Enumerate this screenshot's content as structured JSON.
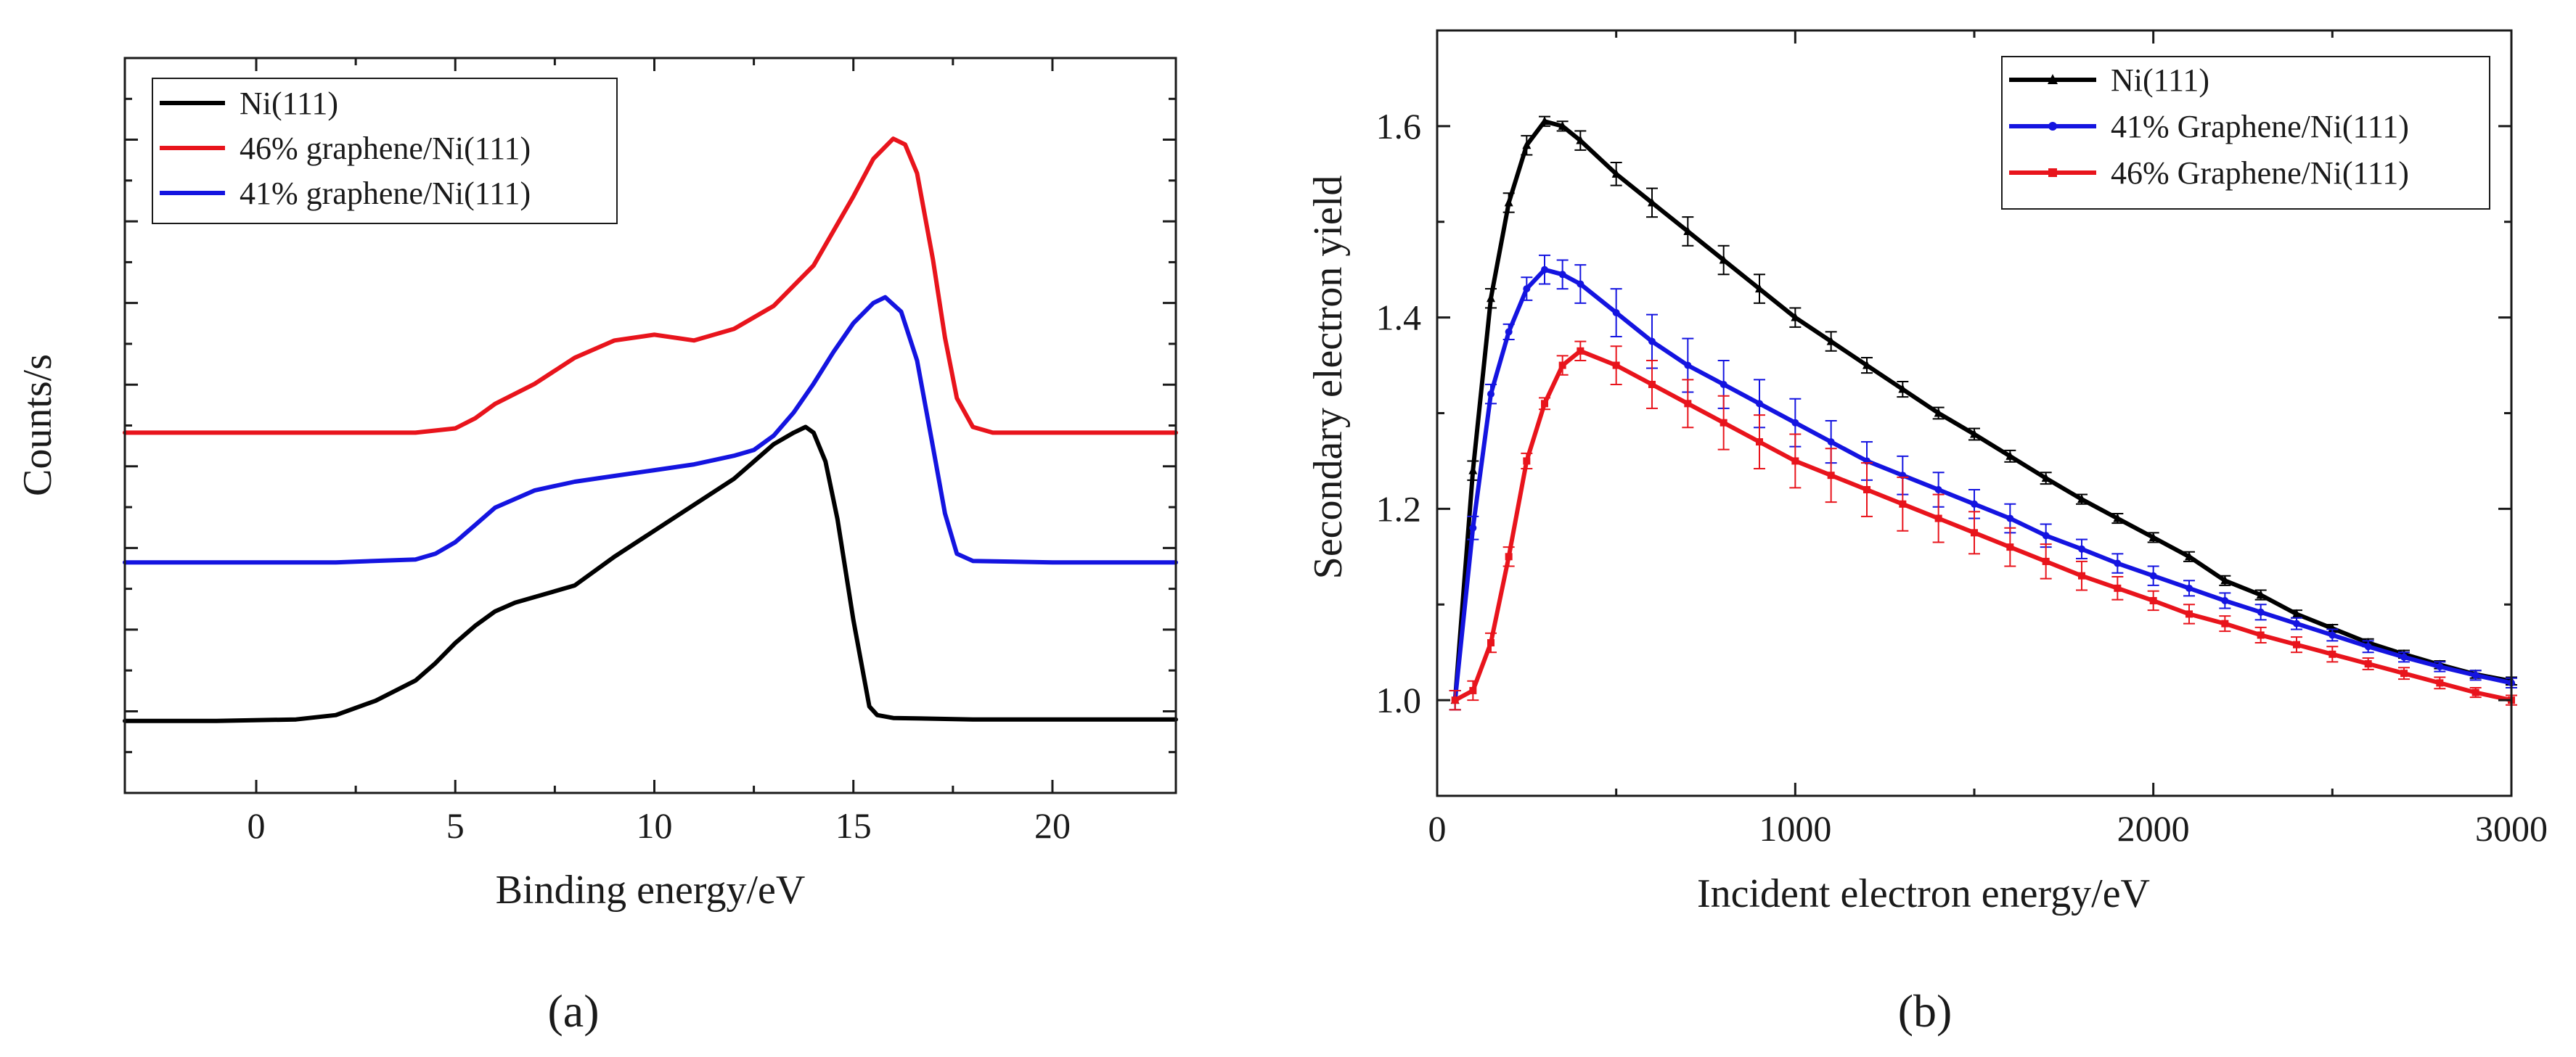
{
  "chart_data": [
    {
      "type": "line",
      "panel_label": "(a)",
      "title": "",
      "xlabel": "Binding energy/eV",
      "ylabel": "Counts/s",
      "xlim": [
        -3.3,
        23.1
      ],
      "ylim": [
        -0.25,
        2.3
      ],
      "xticks": [
        0,
        5,
        10,
        15,
        20
      ],
      "xtick_labels": [
        "0",
        "5",
        "10",
        "15",
        "20"
      ],
      "yticks_labeled": false,
      "legend_position": "top-left",
      "series": [
        {
          "name": "Ni(111)",
          "color": "#000000",
          "x": [
            -3.3,
            -1,
            1,
            2,
            3,
            4,
            4.5,
            5,
            5.5,
            6,
            6.5,
            7,
            8,
            9,
            10,
            11,
            12,
            12.5,
            13,
            13.5,
            13.8,
            14,
            14.3,
            14.6,
            15,
            15.4,
            15.6,
            16,
            18,
            20,
            23.1
          ],
          "y": [
            0,
            0,
            0.005,
            0.02,
            0.07,
            0.14,
            0.2,
            0.27,
            0.33,
            0.38,
            0.41,
            0.43,
            0.47,
            0.57,
            0.66,
            0.75,
            0.84,
            0.9,
            0.96,
            1.0,
            1.02,
            1.0,
            0.9,
            0.7,
            0.35,
            0.05,
            0.02,
            0.01,
            0.005,
            0.005,
            0.005
          ]
        },
        {
          "name": "46% graphene/Ni(111)",
          "color": "#e8141c",
          "x": [
            -3.3,
            2,
            4,
            5,
            5.5,
            6,
            7,
            8,
            9,
            10,
            11,
            12,
            13,
            14,
            15,
            15.5,
            16,
            16.3,
            16.6,
            17,
            17.3,
            17.6,
            18,
            18.5,
            20,
            23.1
          ],
          "y": [
            1.0,
            1.0,
            1.0,
            1.015,
            1.05,
            1.1,
            1.17,
            1.26,
            1.32,
            1.34,
            1.32,
            1.36,
            1.44,
            1.58,
            1.82,
            1.95,
            2.02,
            2.0,
            1.9,
            1.6,
            1.33,
            1.12,
            1.02,
            1.0,
            1.0,
            1.0
          ]
        },
        {
          "name": "41% graphene/Ni(111)",
          "color": "#1414e0",
          "x": [
            -3.3,
            2,
            4,
            4.5,
            5,
            5.5,
            6,
            7,
            8,
            9,
            10,
            11,
            12,
            12.5,
            13,
            13.5,
            14,
            14.5,
            15,
            15.5,
            15.8,
            16.2,
            16.6,
            17,
            17.3,
            17.6,
            18,
            20,
            23.1
          ],
          "y": [
            0.55,
            0.55,
            0.56,
            0.58,
            0.62,
            0.68,
            0.74,
            0.8,
            0.83,
            0.85,
            0.87,
            0.89,
            0.92,
            0.94,
            0.99,
            1.07,
            1.17,
            1.28,
            1.38,
            1.45,
            1.47,
            1.42,
            1.25,
            0.95,
            0.72,
            0.58,
            0.555,
            0.55,
            0.55
          ]
        }
      ]
    },
    {
      "type": "line",
      "panel_label": "(b)",
      "title": "",
      "xlabel": "Incident electron energy/eV",
      "ylabel": "Secondary electron yield",
      "xlim": [
        0,
        3000
      ],
      "ylim": [
        0.9,
        1.7
      ],
      "xticks": [
        0,
        1000,
        2000,
        3000
      ],
      "xtick_labels": [
        "0",
        "1000",
        "2000",
        "3000"
      ],
      "yticks": [
        1.0,
        1.2,
        1.4,
        1.6
      ],
      "ytick_labels": [
        "1.0",
        "1.2",
        "1.4",
        "1.6"
      ],
      "legend_position": "top-right",
      "series": [
        {
          "name": "Ni(111)",
          "color": "#000000",
          "marker": "triangle",
          "x": [
            50,
            100,
            150,
            200,
            250,
            300,
            350,
            400,
            500,
            600,
            700,
            800,
            900,
            1000,
            1100,
            1200,
            1300,
            1400,
            1500,
            1600,
            1700,
            1800,
            1900,
            2000,
            2100,
            2200,
            2300,
            2400,
            2500,
            2600,
            2700,
            2800,
            2900,
            3000
          ],
          "y": [
            1.0,
            1.24,
            1.42,
            1.52,
            1.58,
            1.605,
            1.6,
            1.585,
            1.55,
            1.52,
            1.49,
            1.46,
            1.43,
            1.4,
            1.375,
            1.35,
            1.325,
            1.3,
            1.278,
            1.255,
            1.232,
            1.21,
            1.19,
            1.17,
            1.15,
            1.125,
            1.11,
            1.09,
            1.075,
            1.06,
            1.048,
            1.037,
            1.027,
            1.02
          ],
          "error": [
            0.01,
            0.01,
            0.01,
            0.01,
            0.01,
            0.005,
            0.005,
            0.01,
            0.012,
            0.015,
            0.015,
            0.015,
            0.015,
            0.01,
            0.01,
            0.008,
            0.008,
            0.006,
            0.006,
            0.006,
            0.006,
            0.005,
            0.005,
            0.005,
            0.005,
            0.005,
            0.005,
            0.004,
            0.004,
            0.004,
            0.004,
            0.004,
            0.004,
            0.004
          ]
        },
        {
          "name": "41% Graphene/Ni(111)",
          "color": "#1414e0",
          "marker": "circle",
          "x": [
            50,
            100,
            150,
            200,
            250,
            300,
            350,
            400,
            500,
            600,
            700,
            800,
            900,
            1000,
            1100,
            1200,
            1300,
            1400,
            1500,
            1600,
            1700,
            1800,
            1900,
            2000,
            2100,
            2200,
            2300,
            2400,
            2500,
            2600,
            2700,
            2800,
            2900,
            3000
          ],
          "y": [
            1.0,
            1.18,
            1.32,
            1.385,
            1.43,
            1.45,
            1.445,
            1.435,
            1.405,
            1.375,
            1.35,
            1.33,
            1.31,
            1.29,
            1.27,
            1.25,
            1.235,
            1.22,
            1.205,
            1.19,
            1.172,
            1.158,
            1.143,
            1.13,
            1.117,
            1.104,
            1.092,
            1.08,
            1.068,
            1.056,
            1.045,
            1.035,
            1.026,
            1.018
          ],
          "error": [
            0.01,
            0.012,
            0.01,
            0.008,
            0.012,
            0.015,
            0.015,
            0.02,
            0.025,
            0.028,
            0.028,
            0.025,
            0.025,
            0.025,
            0.022,
            0.02,
            0.02,
            0.018,
            0.015,
            0.015,
            0.012,
            0.01,
            0.01,
            0.01,
            0.008,
            0.008,
            0.008,
            0.006,
            0.006,
            0.006,
            0.005,
            0.005,
            0.005,
            0.005
          ]
        },
        {
          "name": "46% Graphene/Ni(111)",
          "color": "#e8141c",
          "marker": "square",
          "x": [
            50,
            100,
            150,
            200,
            250,
            300,
            350,
            400,
            500,
            600,
            700,
            800,
            900,
            1000,
            1100,
            1200,
            1300,
            1400,
            1500,
            1600,
            1700,
            1800,
            1900,
            2000,
            2100,
            2200,
            2300,
            2400,
            2500,
            2600,
            2700,
            2800,
            2900,
            3000
          ],
          "y": [
            1.0,
            1.01,
            1.06,
            1.15,
            1.25,
            1.31,
            1.35,
            1.365,
            1.35,
            1.33,
            1.31,
            1.29,
            1.27,
            1.25,
            1.235,
            1.22,
            1.205,
            1.19,
            1.175,
            1.16,
            1.145,
            1.13,
            1.117,
            1.104,
            1.09,
            1.08,
            1.068,
            1.058,
            1.048,
            1.038,
            1.028,
            1.018,
            1.008,
            1.0
          ],
          "error": [
            0.01,
            0.01,
            0.01,
            0.01,
            0.008,
            0.006,
            0.01,
            0.01,
            0.02,
            0.025,
            0.025,
            0.028,
            0.028,
            0.028,
            0.028,
            0.028,
            0.028,
            0.025,
            0.022,
            0.02,
            0.018,
            0.015,
            0.012,
            0.01,
            0.01,
            0.008,
            0.008,
            0.008,
            0.008,
            0.006,
            0.006,
            0.006,
            0.005,
            0.005
          ]
        }
      ]
    }
  ]
}
